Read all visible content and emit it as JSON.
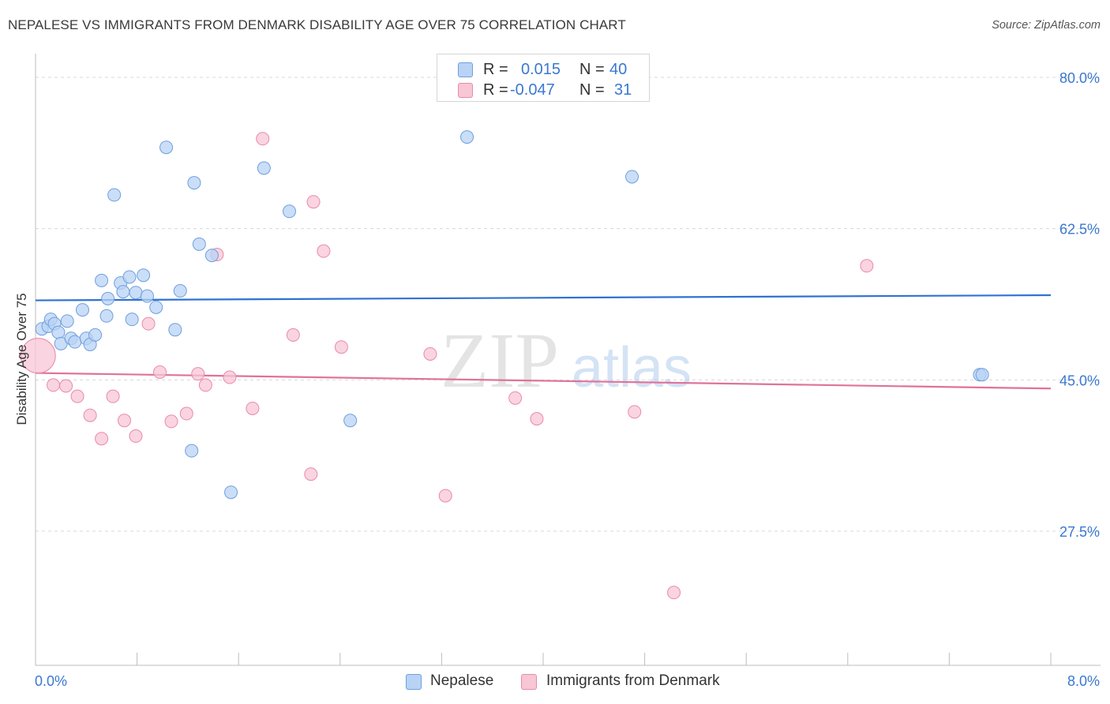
{
  "title": "NEPALESE VS IMMIGRANTS FROM DENMARK DISABILITY AGE OVER 75 CORRELATION CHART",
  "source": "Source: ZipAtlas.com",
  "watermark": {
    "zip": "ZIP",
    "atlas": "atlas"
  },
  "legend_top": {
    "rows": [
      {
        "r_label": "R =",
        "r_value": "0.015",
        "n_label": "N =",
        "n_value": "40"
      },
      {
        "r_label": "R =",
        "r_value": "-0.047",
        "n_label": "N =",
        "n_value": "31"
      }
    ]
  },
  "legend_bottom": [
    {
      "label": "Nepalese"
    },
    {
      "label": "Immigrants from Denmark"
    }
  ],
  "colors": {
    "blue_fill": "#b8d3f5",
    "blue_stroke": "#6f9fdc",
    "blue_line": "#2f72d2",
    "pink_fill": "#f8c6d5",
    "pink_stroke": "#e88ba8",
    "pink_line": "#e0729a",
    "axis_label": "#3a78d0",
    "grid": "#d8d8d8"
  },
  "chart_data": {
    "type": "scatter",
    "title": "NEPALESE VS IMMIGRANTS FROM DENMARK DISABILITY AGE OVER 75 CORRELATION CHART",
    "xlabel": "",
    "ylabel": "Disability Age Over 75",
    "xlim": [
      0,
      8
    ],
    "ylim": [
      10,
      84
    ],
    "x_tick_labels": [
      "0.0%",
      "8.0%"
    ],
    "y_ticks": [
      27.5,
      45.0,
      62.5,
      80.0
    ],
    "y_tick_labels": [
      "27.5%",
      "45.0%",
      "62.5%",
      "80.0%"
    ],
    "grid": true,
    "legend_position": "top-center",
    "series": [
      {
        "name": "Nepalese",
        "r": 0.015,
        "n": 40,
        "trend": {
          "x": [
            0,
            8
          ],
          "y": [
            54.2,
            54.8
          ]
        },
        "points": [
          {
            "x": 0.05,
            "y": 50.9
          },
          {
            "x": 0.1,
            "y": 51.2
          },
          {
            "x": 0.12,
            "y": 52.0
          },
          {
            "x": 0.15,
            "y": 51.5
          },
          {
            "x": 0.18,
            "y": 50.5
          },
          {
            "x": 0.2,
            "y": 49.2
          },
          {
            "x": 0.25,
            "y": 51.8
          },
          {
            "x": 0.28,
            "y": 49.8
          },
          {
            "x": 0.31,
            "y": 49.4
          },
          {
            "x": 0.37,
            "y": 53.1
          },
          {
            "x": 0.4,
            "y": 49.8
          },
          {
            "x": 0.43,
            "y": 49.1
          },
          {
            "x": 0.47,
            "y": 50.2
          },
          {
            "x": 0.52,
            "y": 56.5
          },
          {
            "x": 0.56,
            "y": 52.4
          },
          {
            "x": 0.57,
            "y": 54.4
          },
          {
            "x": 0.62,
            "y": 66.4
          },
          {
            "x": 0.67,
            "y": 56.2
          },
          {
            "x": 0.69,
            "y": 55.2
          },
          {
            "x": 0.74,
            "y": 56.9
          },
          {
            "x": 0.76,
            "y": 52.0
          },
          {
            "x": 0.79,
            "y": 55.1
          },
          {
            "x": 0.85,
            "y": 57.1
          },
          {
            "x": 0.88,
            "y": 54.7
          },
          {
            "x": 0.95,
            "y": 53.4
          },
          {
            "x": 1.03,
            "y": 71.9
          },
          {
            "x": 1.1,
            "y": 50.8
          },
          {
            "x": 1.14,
            "y": 55.3
          },
          {
            "x": 1.23,
            "y": 36.8
          },
          {
            "x": 1.25,
            "y": 67.8
          },
          {
            "x": 1.29,
            "y": 60.7
          },
          {
            "x": 1.39,
            "y": 59.4
          },
          {
            "x": 1.54,
            "y": 32.0
          },
          {
            "x": 1.8,
            "y": 69.5
          },
          {
            "x": 2.0,
            "y": 64.5
          },
          {
            "x": 2.48,
            "y": 40.3
          },
          {
            "x": 3.4,
            "y": 73.1
          },
          {
            "x": 4.7,
            "y": 68.5
          },
          {
            "x": 7.44,
            "y": 45.6
          },
          {
            "x": 7.46,
            "y": 45.6
          }
        ]
      },
      {
        "name": "Immigrants from Denmark",
        "r": -0.047,
        "n": 31,
        "trend": {
          "x": [
            0,
            8
          ],
          "y": [
            45.8,
            44.0
          ]
        },
        "points": [
          {
            "x": 0.02,
            "y": 47.8
          },
          {
            "x": 0.14,
            "y": 44.4
          },
          {
            "x": 0.24,
            "y": 44.3
          },
          {
            "x": 0.33,
            "y": 43.1
          },
          {
            "x": 0.43,
            "y": 40.9
          },
          {
            "x": 0.52,
            "y": 38.2
          },
          {
            "x": 0.61,
            "y": 43.1
          },
          {
            "x": 0.7,
            "y": 40.3
          },
          {
            "x": 0.79,
            "y": 38.5
          },
          {
            "x": 0.89,
            "y": 51.5
          },
          {
            "x": 0.98,
            "y": 45.9
          },
          {
            "x": 1.07,
            "y": 40.2
          },
          {
            "x": 1.19,
            "y": 41.1
          },
          {
            "x": 1.28,
            "y": 45.7
          },
          {
            "x": 1.34,
            "y": 44.4
          },
          {
            "x": 1.43,
            "y": 59.5
          },
          {
            "x": 1.53,
            "y": 45.3
          },
          {
            "x": 1.71,
            "y": 41.7
          },
          {
            "x": 1.79,
            "y": 72.9
          },
          {
            "x": 2.03,
            "y": 50.2
          },
          {
            "x": 2.17,
            "y": 34.1
          },
          {
            "x": 2.19,
            "y": 65.6
          },
          {
            "x": 2.27,
            "y": 59.9
          },
          {
            "x": 2.41,
            "y": 48.8
          },
          {
            "x": 3.11,
            "y": 48.0
          },
          {
            "x": 3.23,
            "y": 31.6
          },
          {
            "x": 3.78,
            "y": 42.9
          },
          {
            "x": 3.95,
            "y": 40.5
          },
          {
            "x": 4.72,
            "y": 41.3
          },
          {
            "x": 5.03,
            "y": 20.4
          },
          {
            "x": 6.55,
            "y": 58.2
          }
        ]
      }
    ]
  }
}
